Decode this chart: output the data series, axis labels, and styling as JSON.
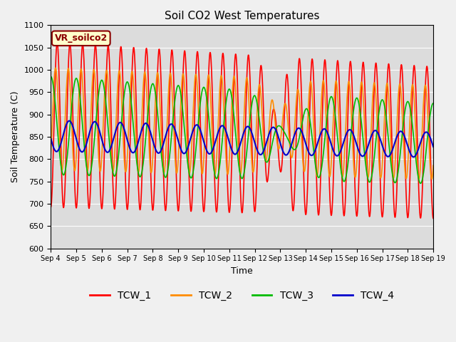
{
  "title": "Soil CO2 West Temperatures",
  "xlabel": "Time",
  "ylabel": "Soil Temperature (C)",
  "ylim": [
    600,
    1100
  ],
  "yticks": [
    600,
    650,
    700,
    750,
    800,
    850,
    900,
    950,
    1000,
    1050,
    1100
  ],
  "xtick_labels": [
    "Sep 4",
    "Sep 5",
    "Sep 6",
    "Sep 7",
    "Sep 8",
    "Sep 9",
    "Sep 10",
    "Sep 11",
    "Sep 12",
    "Sep 13",
    "Sep 14",
    "Sep 15",
    "Sep 16",
    "Sep 17",
    "Sep 18",
    "Sep 19"
  ],
  "annotation_text": "VR_soilco2",
  "annotation_bbox_facecolor": "#ffffcc",
  "annotation_bbox_edgecolor": "#8b0000",
  "colors": {
    "TCW_1": "#ff0000",
    "TCW_2": "#ff8c00",
    "TCW_3": "#00bb00",
    "TCW_4": "#0000cc"
  },
  "fig_facecolor": "#f0f0f0",
  "axes_facecolor": "#dcdcdc",
  "grid_color": "#ffffff",
  "title_fontsize": 11,
  "axis_label_fontsize": 9,
  "tick_fontsize": 8,
  "legend_fontsize": 10,
  "n_days": 15,
  "points_per_day": 100
}
